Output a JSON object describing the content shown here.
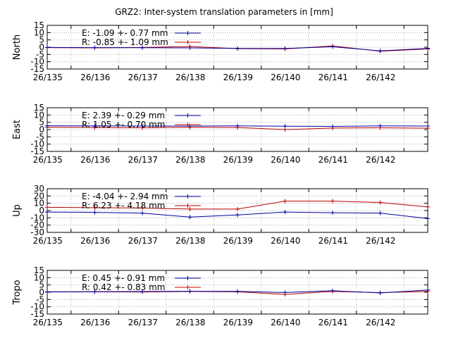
{
  "title": "GRZ2: Inter-system translation parameters in [mm]",
  "x_tick_labels": [
    "26/135",
    "26/136",
    "26/137",
    "26/138",
    "26/139",
    "26/140",
    "26/141",
    "26/142"
  ],
  "colors": {
    "E": "#0000a0",
    "R": "#c00000",
    "grid": "#a0a0a0",
    "frame": "#000000"
  },
  "chart_data": [
    {
      "type": "line",
      "ylabel": "North",
      "ylim": [
        -15,
        15
      ],
      "yticks": [
        -15,
        -10,
        -5,
        0,
        5,
        10,
        15
      ],
      "xlim": [
        134.5,
        142.5
      ],
      "series": [
        {
          "name": "E",
          "legend_text": "E:  -1.09 +- 0.77 mm",
          "x": [
            134.5,
            135.5,
            136.5,
            137.5,
            138.5,
            139.5,
            140.5,
            141.5,
            142.5
          ],
          "values": [
            -0.2,
            -0.3,
            -0.4,
            -0.5,
            -0.8,
            -0.9,
            0.3,
            -2.5,
            -0.8
          ]
        },
        {
          "name": "R",
          "legend_text": "R:  -0.85 +- 1.09 mm",
          "x": [
            134.5,
            135.5,
            136.5,
            137.5,
            138.5,
            139.5,
            140.5,
            141.5,
            142.5
          ],
          "values": [
            -0.3,
            -0.5,
            -0.2,
            0.5,
            -1.0,
            -1.2,
            0.8,
            -2.8,
            -1.2
          ]
        }
      ]
    },
    {
      "type": "line",
      "ylabel": "East",
      "ylim": [
        -15,
        15
      ],
      "yticks": [
        -15,
        -10,
        -5,
        0,
        5,
        10,
        15
      ],
      "xlim": [
        134.5,
        142.5
      ],
      "series": [
        {
          "name": "E",
          "legend_text": "E:   2.39 +- 0.29 mm",
          "x": [
            134.5,
            135.5,
            136.5,
            137.5,
            138.5,
            139.5,
            140.5,
            141.5,
            142.5
          ],
          "values": [
            2.6,
            2.5,
            2.4,
            2.4,
            2.5,
            2.3,
            2.2,
            2.5,
            2.4
          ]
        },
        {
          "name": "R",
          "legend_text": "R:   1.05 +- 0.70 mm",
          "x": [
            134.5,
            135.5,
            136.5,
            137.5,
            138.5,
            139.5,
            140.5,
            141.5,
            142.5
          ],
          "values": [
            1.6,
            1.4,
            1.2,
            1.6,
            1.4,
            0.0,
            1.0,
            1.2,
            0.9
          ]
        }
      ]
    },
    {
      "type": "line",
      "ylabel": "Up",
      "ylim": [
        -30,
        30
      ],
      "yticks": [
        -30,
        -20,
        -10,
        0,
        10,
        20,
        30
      ],
      "xlim": [
        134.5,
        142.5
      ],
      "series": [
        {
          "name": "E",
          "legend_text": "E:  -4.04 +- 2.94 mm",
          "x": [
            134.5,
            135.5,
            136.5,
            137.5,
            138.5,
            139.5,
            140.5,
            141.5,
            142.5
          ],
          "values": [
            -2.0,
            -2.5,
            -3.5,
            -9.0,
            -6.0,
            -2.0,
            -3.0,
            -3.5,
            -11.0
          ]
        },
        {
          "name": "R",
          "legend_text": "R:   6.23 +- 4.18 mm",
          "x": [
            134.5,
            135.5,
            136.5,
            137.5,
            138.5,
            139.5,
            140.5,
            141.5,
            142.5
          ],
          "values": [
            4.5,
            4.0,
            3.5,
            2.0,
            2.0,
            13.0,
            13.0,
            11.0,
            5.0
          ]
        }
      ]
    },
    {
      "type": "line",
      "ylabel": "Tropo",
      "ylim": [
        -15,
        15
      ],
      "yticks": [
        -15,
        -10,
        -5,
        0,
        5,
        10,
        15
      ],
      "xlim": [
        134.5,
        142.5
      ],
      "series": [
        {
          "name": "E",
          "legend_text": "E:   0.45 +- 0.91 mm",
          "x": [
            134.5,
            135.5,
            136.5,
            137.5,
            138.5,
            139.5,
            140.5,
            141.5,
            142.5
          ],
          "values": [
            0.3,
            0.4,
            0.5,
            0.7,
            0.6,
            -0.2,
            1.0,
            -0.5,
            1.5
          ]
        },
        {
          "name": "R",
          "legend_text": "R:   0.42 +- 0.83 mm",
          "x": [
            134.5,
            135.5,
            136.5,
            137.5,
            138.5,
            139.5,
            140.5,
            141.5,
            142.5
          ],
          "values": [
            0.2,
            0.3,
            0.2,
            0.6,
            0.3,
            -1.5,
            0.6,
            -0.3,
            0.6
          ]
        }
      ]
    }
  ]
}
